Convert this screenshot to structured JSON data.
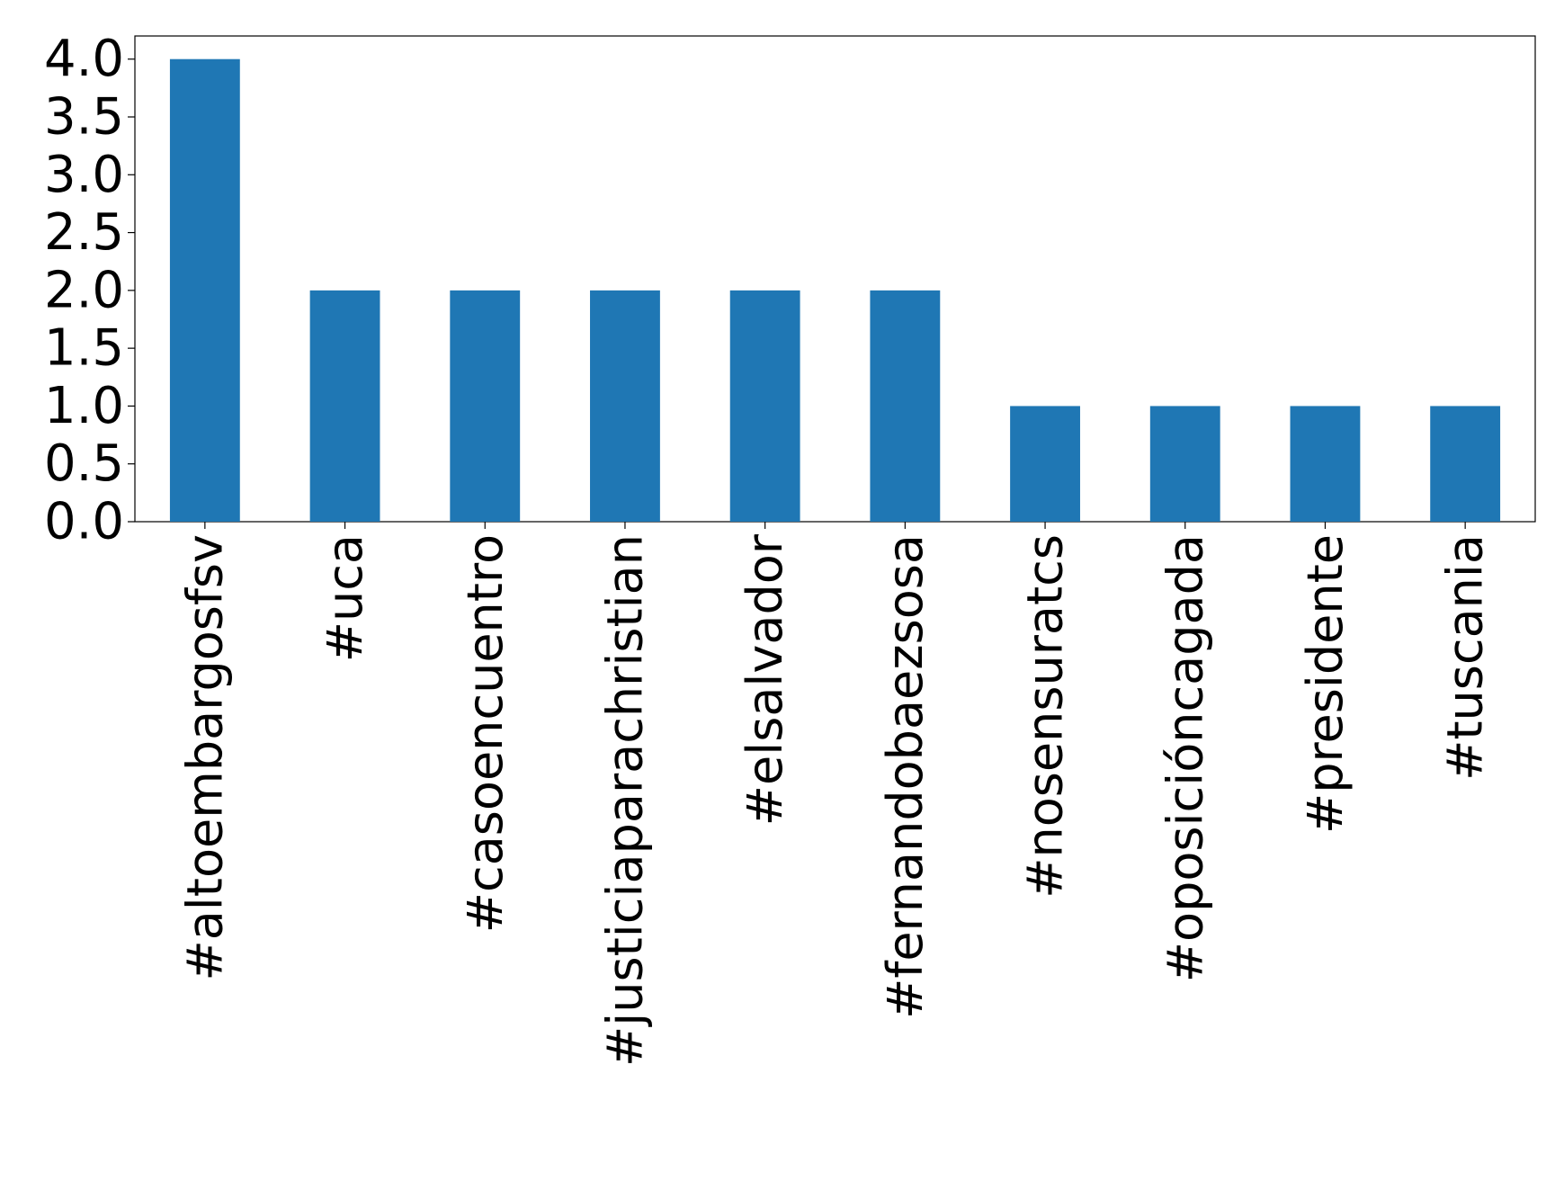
{
  "chart_data": {
    "type": "bar",
    "categories": [
      "#altoembargosfsv",
      "#uca",
      "#casoencuentro",
      "#justiciaparachristian",
      "#elsalvador",
      "#fernandobaezsosa",
      "#nosensuratcs",
      "#oposicióncagada",
      "#presidente",
      "#tuscania"
    ],
    "values": [
      4,
      2,
      2,
      2,
      2,
      2,
      1,
      1,
      1,
      1
    ],
    "color": "#1f77b4",
    "ylim": [
      0,
      4.2
    ],
    "yticks": [
      {
        "value": 0,
        "label": "0.0"
      },
      {
        "value": 0.5,
        "label": "0.5"
      },
      {
        "value": 1,
        "label": "1.0"
      },
      {
        "value": 1.5,
        "label": "1.5"
      },
      {
        "value": 2,
        "label": "2.0"
      },
      {
        "value": 2.5,
        "label": "2.5"
      },
      {
        "value": 3,
        "label": "3.0"
      },
      {
        "value": 3.5,
        "label": "3.5"
      },
      {
        "value": 4,
        "label": "4.0"
      }
    ],
    "grid": false
  }
}
